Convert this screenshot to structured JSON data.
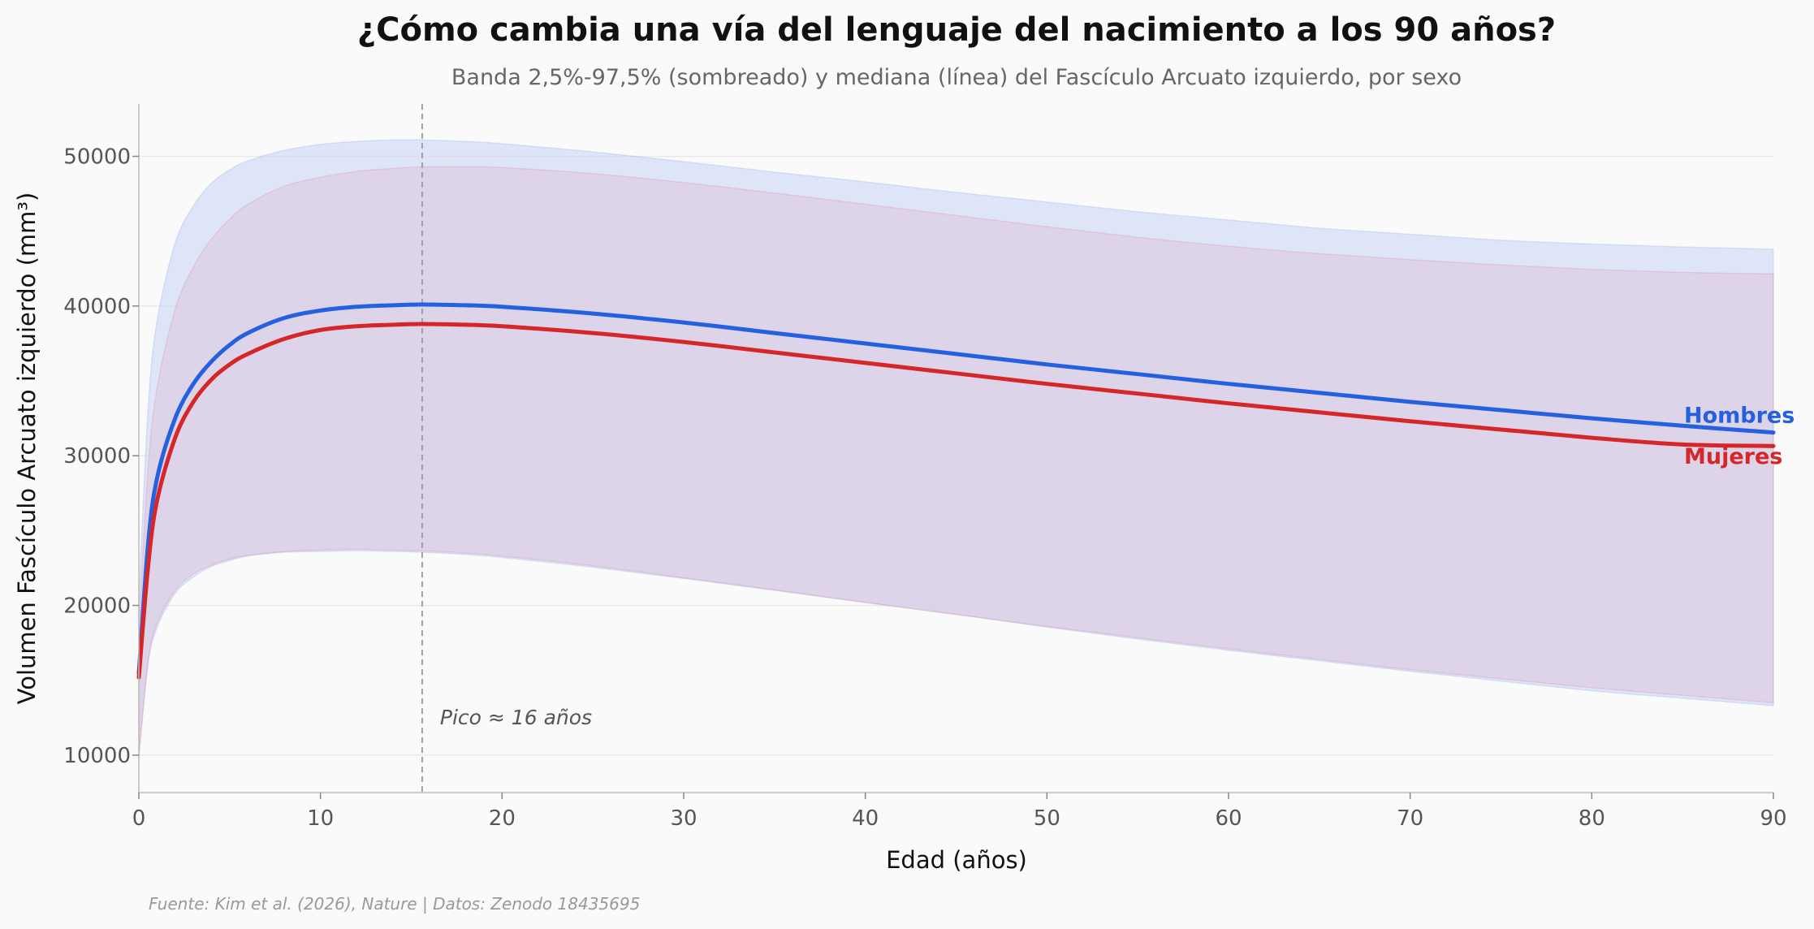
{
  "chart_data": {
    "type": "line",
    "title": "¿Cómo cambia una vía del lenguaje del nacimiento a los 90 años?",
    "subtitle": "Banda 2,5%-97,5% (sombreado) y mediana (línea) del Fascículo Arcuato izquierdo, por sexo",
    "xlabel": "Edad (años)",
    "ylabel": "Volumen Fascículo Arcuato izquierdo (mm³)",
    "xlim": [
      0,
      90
    ],
    "ylim": [
      7500,
      53500
    ],
    "xticks": [
      0,
      10,
      20,
      30,
      40,
      50,
      60,
      70,
      80,
      90
    ],
    "yticks": [
      10000,
      20000,
      30000,
      40000,
      50000
    ],
    "grid": "horizontal",
    "legend": "inline-right",
    "x": [
      0,
      0.5,
      1,
      2,
      3,
      4,
      5,
      6,
      8,
      10,
      12,
      14,
      15.6,
      18,
      20,
      25,
      30,
      35,
      40,
      45,
      50,
      55,
      60,
      65,
      70,
      75,
      80,
      85,
      90
    ],
    "series": [
      {
        "name": "Hombres",
        "color": "#2560e0",
        "band_color": "#c8d4f5",
        "median": [
          15500,
          24000,
          28500,
          32500,
          34800,
          36300,
          37400,
          38200,
          39200,
          39700,
          39950,
          40050,
          40100,
          40050,
          39950,
          39500,
          38900,
          38200,
          37500,
          36800,
          36100,
          35450,
          34800,
          34200,
          33600,
          33050,
          32500,
          32000,
          31550
        ],
        "lower": [
          10000,
          16000,
          18500,
          20800,
          21900,
          22600,
          23000,
          23300,
          23550,
          23600,
          23650,
          23600,
          23550,
          23400,
          23200,
          22550,
          21800,
          21000,
          20200,
          19400,
          18550,
          17750,
          17000,
          16300,
          15600,
          14950,
          14300,
          13800,
          13300
        ],
        "upper": [
          20500,
          33000,
          39000,
          44200,
          46700,
          48200,
          49100,
          49700,
          50400,
          50800,
          51000,
          51100,
          51100,
          51000,
          50850,
          50300,
          49650,
          48950,
          48300,
          47600,
          46950,
          46300,
          45750,
          45200,
          44800,
          44400,
          44150,
          43950,
          43800
        ]
      },
      {
        "name": "Mujeres",
        "color": "#d62728",
        "band_color": "#dcc6dc",
        "median": [
          15200,
          22500,
          27000,
          31200,
          33600,
          35100,
          36100,
          36800,
          37800,
          38400,
          38650,
          38750,
          38800,
          38750,
          38650,
          38200,
          37600,
          36900,
          36200,
          35500,
          34800,
          34150,
          33500,
          32900,
          32300,
          31750,
          31200,
          30750,
          30650
        ],
        "lower": [
          9800,
          16200,
          18800,
          21000,
          22100,
          22700,
          23100,
          23350,
          23600,
          23700,
          23750,
          23700,
          23650,
          23500,
          23300,
          22650,
          21850,
          21050,
          20200,
          19400,
          18600,
          17850,
          17100,
          16400,
          15700,
          15100,
          14500,
          14000,
          13500
        ],
        "upper": [
          18500,
          29000,
          34500,
          39800,
          42600,
          44500,
          45800,
          46800,
          48000,
          48600,
          49000,
          49200,
          49300,
          49300,
          49250,
          48850,
          48250,
          47550,
          46800,
          46050,
          45300,
          44600,
          44000,
          43500,
          43100,
          42750,
          42450,
          42250,
          42150
        ]
      }
    ],
    "peak": {
      "x": 15.6,
      "label": "Pico ≈ 16 años"
    },
    "source": "Fuente: Kim et al. (2026), Nature | Datos: Zenodo 18435695"
  }
}
